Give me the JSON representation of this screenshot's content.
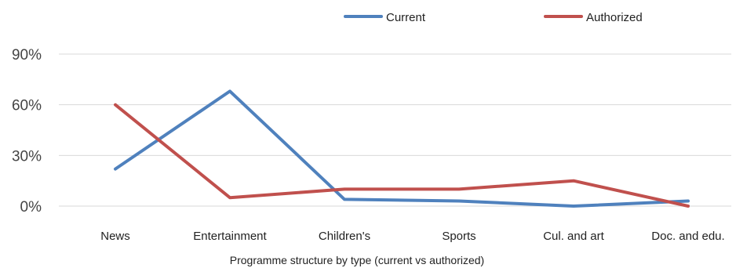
{
  "chart_data": {
    "type": "line",
    "title": "",
    "xlabel": "Programme structure by type (current vs authorized)",
    "ylabel": "",
    "categories": [
      "News",
      "Entertainment",
      "Children's",
      "Sports",
      "Cul. and art",
      "Doc. and edu."
    ],
    "series": [
      {
        "name": "Current",
        "color": "#4f81bd",
        "values": [
          22,
          68,
          4,
          3,
          0,
          3
        ]
      },
      {
        "name": "Authorized",
        "color": "#c0504d",
        "values": [
          60,
          5,
          10,
          10,
          15,
          0
        ]
      }
    ],
    "y_ticks": [
      0,
      30,
      60,
      90
    ],
    "y_tick_labels": [
      "0%",
      "30%",
      "60%",
      "90%"
    ],
    "ylim": [
      0,
      90
    ],
    "grid": true,
    "legend_position": "top"
  }
}
